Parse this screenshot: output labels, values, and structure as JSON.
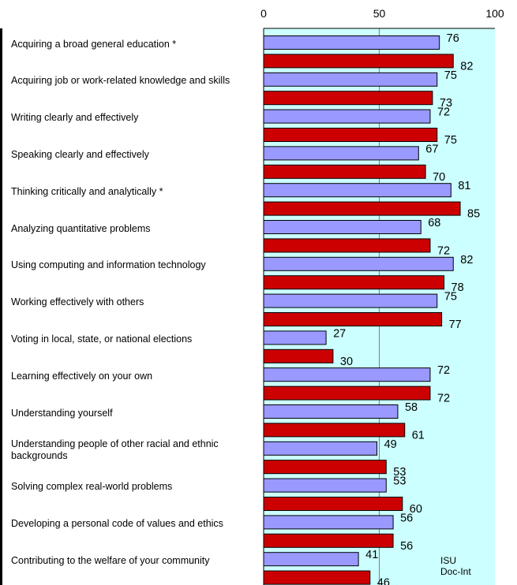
{
  "chart_data": {
    "type": "bar",
    "orientation": "horizontal",
    "xlim": [
      0,
      100
    ],
    "xticks": [
      0,
      50,
      100
    ],
    "grid": "vertical lines at 50",
    "categories": [
      "Acquiring a broad general education *",
      "Acquiring job or work-related knowledge and skills",
      "Writing clearly and effectively",
      "Speaking clearly and effectively",
      "Thinking critically and analytically *",
      "Analyzing quantitative problems",
      "Using computing and information technology",
      "Working effectively with others",
      "Voting in local, state, or national elections",
      "Learning effectively on your own",
      "Understanding yourself",
      "Understanding people of other racial and ethnic backgrounds",
      "Solving complex real-world problems",
      "Developing a personal code of values and ethics",
      "Contributing to the welfare of your community"
    ],
    "series": [
      {
        "name": "ISU",
        "color": "#9999ff",
        "values": [
          76,
          75,
          72,
          67,
          81,
          68,
          82,
          75,
          27,
          72,
          58,
          49,
          53,
          56,
          41
        ]
      },
      {
        "name": "Doc-Int",
        "color": "#cc0000",
        "values": [
          82,
          73,
          75,
          70,
          85,
          72,
          78,
          77,
          30,
          72,
          61,
          53,
          60,
          56,
          46
        ]
      }
    ],
    "plot_background": "#ccffff"
  }
}
